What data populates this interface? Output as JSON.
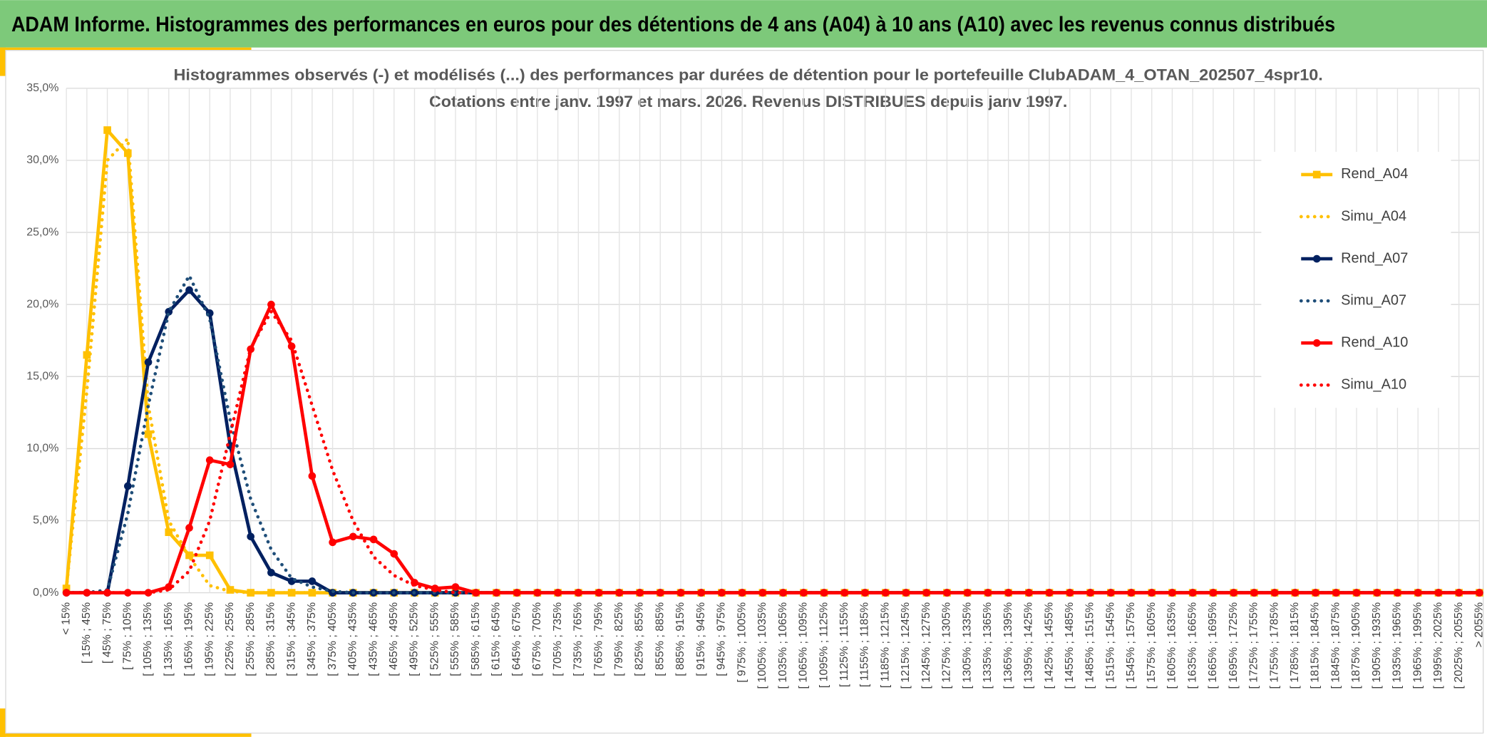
{
  "header": {
    "title": "ADAM Informe. Histogrammes des performances en euros pour des détentions de 4 ans (A04) à 10 ans (A10) avec les revenus connus distribués"
  },
  "chart_data": {
    "type": "line",
    "title": "Histogrammes observés (-) et modélisés (...) des performances par durées de détention pour le portefeuille ClubADAM_4_OTAN_202507_4spr10.",
    "subtitle": "Cotations entre janv. 1997 et mars. 2026. Revenus DISTRIBUES depuis janv 1997.",
    "categories": [
      "< 15%",
      "[ 15% ; 45%",
      "[ 45% ; 75%",
      "[ 75% ; 105%",
      "[ 105% ; 135%",
      "[ 135% ; 165%",
      "[ 165% ; 195%",
      "[ 195% ; 225%",
      "[ 225% ; 255%",
      "[ 255% ; 285%",
      "[ 285% ; 315%",
      "[ 315% ; 345%",
      "[ 345% ; 375%",
      "[ 375% ; 405%",
      "[ 405% ; 435%",
      "[ 435% ; 465%",
      "[ 465% ; 495%",
      "[ 495% ; 525%",
      "[ 525% ; 555%",
      "[ 555% ; 585%",
      "[ 585% ; 615%",
      "[ 615% ; 645%",
      "[ 645% ; 675%",
      "[ 675% ; 705%",
      "[ 705% ; 735%",
      "[ 735% ; 765%",
      "[ 765% ; 795%",
      "[ 795% ; 825%",
      "[ 825% ; 855%",
      "[ 855% ; 885%",
      "[ 885% ; 915%",
      "[ 915% ; 945%",
      "[ 945% ; 975%",
      "[ 975% ; 1005%",
      "[ 1005% ; 1035%",
      "[ 1035% ; 1065%",
      "[ 1065% ; 1095%",
      "[ 1095% ; 1125%",
      "[ 1125% ; 1155%",
      "[ 1155% ; 1185%",
      "[ 1185% ; 1215%",
      "[ 1215% ; 1245%",
      "[ 1245% ; 1275%",
      "[ 1275% ; 1305%",
      "[ 1305% ; 1335%",
      "[ 1335% ; 1365%",
      "[ 1365% ; 1395%",
      "[ 1395% ; 1425%",
      "[ 1425% ; 1455%",
      "[ 1455% ; 1485%",
      "[ 1485% ; 1515%",
      "[ 1515% ; 1545%",
      "[ 1545% ; 1575%",
      "[ 1575% ; 1605%",
      "[ 1605% ; 1635%",
      "[ 1635% ; 1665%",
      "[ 1665% ; 1695%",
      "[ 1695% ; 1725%",
      "[ 1725% ; 1755%",
      "[ 1755% ; 1785%",
      "[ 1785% ; 1815%",
      "[ 1815% ; 1845%",
      "[ 1845% ; 1875%",
      "[ 1875% ; 1905%",
      "[ 1905% ; 1935%",
      "[ 1935% ; 1965%",
      "[ 1965% ; 1995%",
      "[ 1995% ; 2025%",
      "[ 2025% ; 2055%",
      "> 2055%"
    ],
    "series": [
      {
        "name": "Rend_A04",
        "color": "#FFC000",
        "line_style": "solid",
        "marker": "square",
        "values": [
          0.3,
          16.5,
          32.1,
          30.5,
          11,
          4.2,
          2.6,
          2.6,
          0.2,
          0,
          0,
          0,
          0,
          0,
          0,
          0,
          0,
          0,
          0,
          0,
          0,
          0,
          0,
          0,
          0,
          0,
          0,
          0,
          0,
          0,
          0,
          0,
          0,
          0,
          0,
          0,
          0,
          0,
          0,
          0,
          0,
          0,
          0,
          0,
          0,
          0,
          0,
          0,
          0,
          0,
          0,
          0,
          0,
          0,
          0,
          0,
          0,
          0,
          0,
          0,
          0,
          0,
          0,
          0,
          0,
          0,
          0,
          0,
          0,
          0
        ]
      },
      {
        "name": "Simu_A04",
        "color": "#FFC000",
        "line_style": "dotted",
        "marker": "none",
        "values": [
          0.3,
          14,
          30,
          31.5,
          13,
          5,
          2.5,
          0.5,
          0.1,
          0,
          0,
          0,
          0,
          0,
          0,
          0,
          0,
          0,
          0,
          0,
          0,
          0,
          0,
          0,
          0,
          0,
          0,
          0,
          0,
          0,
          0,
          0,
          0,
          0,
          0,
          0,
          0,
          0,
          0,
          0,
          0,
          0,
          0,
          0,
          0,
          0,
          0,
          0,
          0,
          0,
          0,
          0,
          0,
          0,
          0,
          0,
          0,
          0,
          0,
          0,
          0,
          0,
          0,
          0,
          0,
          0,
          0,
          0,
          0,
          0
        ]
      },
      {
        "name": "Rend_A07",
        "color": "#002060",
        "line_style": "solid",
        "marker": "circle",
        "values": [
          0,
          0,
          0,
          7.4,
          16,
          19.5,
          21,
          19.4,
          10.2,
          3.9,
          1.4,
          0.8,
          0.8,
          0,
          0,
          0,
          0,
          0,
          0,
          0,
          0,
          0,
          0,
          0,
          0,
          0,
          0,
          0,
          0,
          0,
          0,
          0,
          0,
          0,
          0,
          0,
          0,
          0,
          0,
          0,
          0,
          0,
          0,
          0,
          0,
          0,
          0,
          0,
          0,
          0,
          0,
          0,
          0,
          0,
          0,
          0,
          0,
          0,
          0,
          0,
          0,
          0,
          0,
          0,
          0,
          0,
          0,
          0,
          0,
          0
        ]
      },
      {
        "name": "Simu_A07",
        "color": "#1F4E79",
        "line_style": "dotted",
        "marker": "none",
        "values": [
          0,
          0,
          0.2,
          5.5,
          13,
          19.5,
          22,
          19,
          12,
          6.5,
          3,
          1,
          0.4,
          0.1,
          0,
          0,
          0,
          0,
          0,
          0,
          0,
          0,
          0,
          0,
          0,
          0,
          0,
          0,
          0,
          0,
          0,
          0,
          0,
          0,
          0,
          0,
          0,
          0,
          0,
          0,
          0,
          0,
          0,
          0,
          0,
          0,
          0,
          0,
          0,
          0,
          0,
          0,
          0,
          0,
          0,
          0,
          0,
          0,
          0,
          0,
          0,
          0,
          0,
          0,
          0,
          0,
          0,
          0,
          0,
          0
        ]
      },
      {
        "name": "Rend_A10",
        "color": "#FF0000",
        "line_style": "solid",
        "marker": "circle",
        "values": [
          0,
          0,
          0,
          0,
          0,
          0.4,
          4.5,
          9.2,
          8.9,
          16.9,
          20,
          17.1,
          8.1,
          3.5,
          3.9,
          3.7,
          2.7,
          0.7,
          0.3,
          0.4,
          0,
          0,
          0,
          0,
          0,
          0,
          0,
          0,
          0,
          0,
          0,
          0,
          0,
          0,
          0,
          0,
          0,
          0,
          0,
          0,
          0,
          0,
          0,
          0,
          0,
          0,
          0,
          0,
          0,
          0,
          0,
          0,
          0,
          0,
          0,
          0,
          0,
          0,
          0,
          0,
          0,
          0,
          0,
          0,
          0,
          0,
          0,
          0,
          0,
          0
        ]
      },
      {
        "name": "Simu_A10",
        "color": "#FF0000",
        "line_style": "dotted",
        "marker": "none",
        "values": [
          0,
          0,
          0,
          0,
          0,
          0.2,
          1.5,
          5,
          11,
          17,
          19.5,
          17.5,
          13,
          8.5,
          5,
          2.5,
          1.2,
          0.5,
          0.2,
          0,
          0,
          0,
          0,
          0,
          0,
          0,
          0,
          0,
          0,
          0,
          0,
          0,
          0,
          0,
          0,
          0,
          0,
          0,
          0,
          0,
          0,
          0,
          0,
          0,
          0,
          0,
          0,
          0,
          0,
          0,
          0,
          0,
          0,
          0,
          0,
          0,
          0,
          0,
          0,
          0,
          0,
          0,
          0,
          0,
          0,
          0,
          0,
          0,
          0,
          0
        ]
      }
    ],
    "ylim": [
      0,
      35
    ],
    "yticks": [
      {
        "value": 0,
        "label": "0,0%"
      },
      {
        "value": 5,
        "label": "5,0%"
      },
      {
        "value": 10,
        "label": "10,0%"
      },
      {
        "value": 15,
        "label": "15,0%"
      },
      {
        "value": 20,
        "label": "20,0%"
      },
      {
        "value": 25,
        "label": "25,0%"
      },
      {
        "value": 30,
        "label": "30,0%"
      },
      {
        "value": 35,
        "label": "35,0%"
      }
    ],
    "grid": true,
    "legend": "right"
  }
}
